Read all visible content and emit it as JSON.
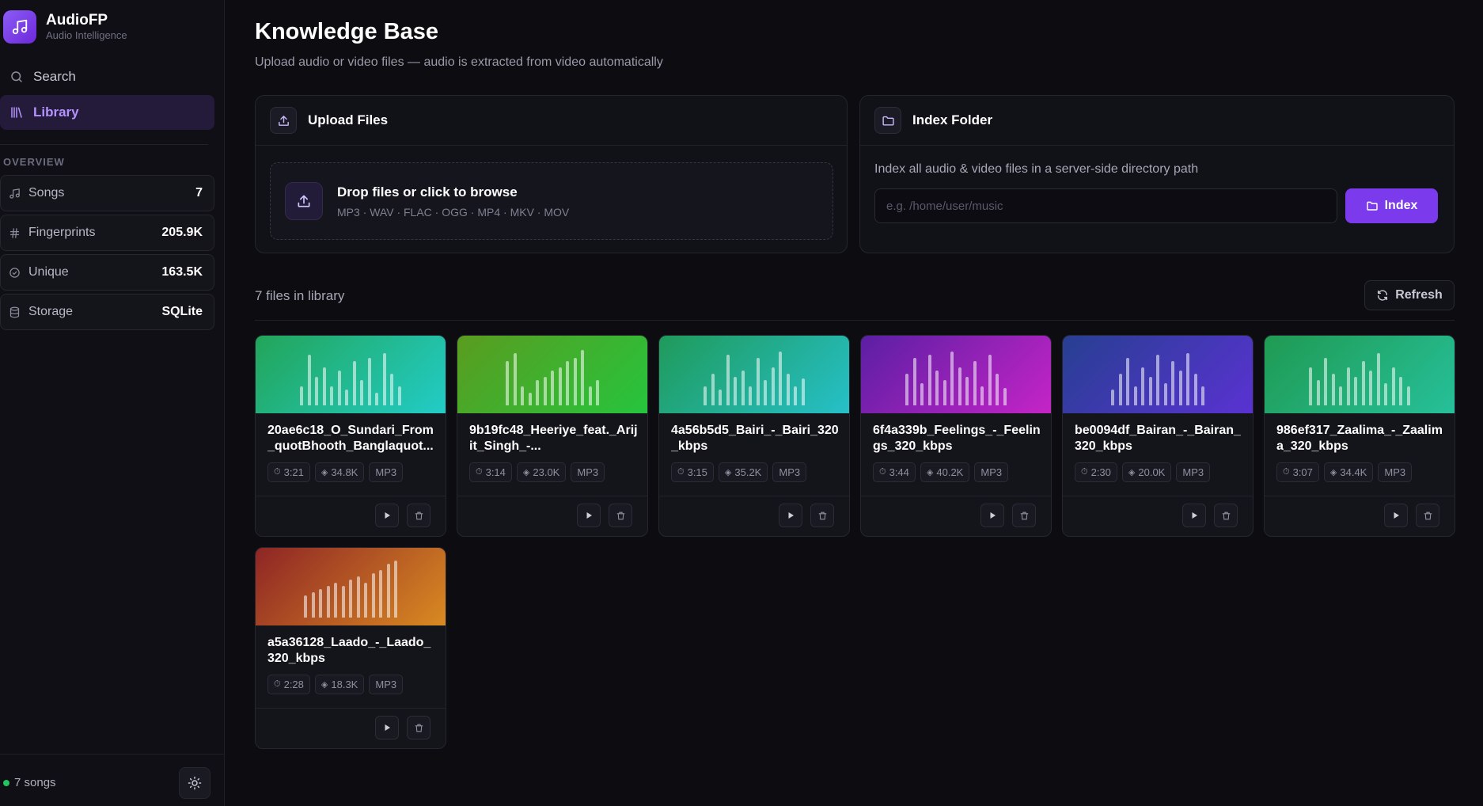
{
  "brand": {
    "name": "AudioFP",
    "subtitle": "Audio Intelligence"
  },
  "nav": [
    {
      "label": "Search",
      "icon": "search-icon",
      "active": false
    },
    {
      "label": "Library",
      "icon": "library-icon",
      "active": true
    }
  ],
  "overview": {
    "label": "OVERVIEW",
    "stats": [
      {
        "label": "Songs",
        "value": "7",
        "icon": "music-note-icon"
      },
      {
        "label": "Fingerprints",
        "value": "205.9K",
        "icon": "hash-icon"
      },
      {
        "label": "Unique",
        "value": "163.5K",
        "icon": "check-circle-icon"
      },
      {
        "label": "Storage",
        "value": "SQLite",
        "icon": "database-icon"
      }
    ]
  },
  "footer": {
    "status": "7 songs",
    "status_color": "#22c55e"
  },
  "page": {
    "title": "Knowledge Base",
    "subtitle": "Upload audio or video files — audio is extracted from video automatically"
  },
  "upload": {
    "title": "Upload Files",
    "drop_title": "Drop files or click to browse",
    "formats": "MP3 · WAV · FLAC · OGG · MP4 · MKV · MOV"
  },
  "index_folder": {
    "title": "Index Folder",
    "description": "Index all audio & video files in a server-side directory path",
    "placeholder": "e.g. /home/user/music",
    "value": "",
    "button": "Index"
  },
  "library": {
    "count_label": "7 files in library",
    "refresh_label": "Refresh",
    "accent": "#7c3aed",
    "songs": [
      {
        "title": "20ae6c18_O_Sundari_From_quotBhooth_Banglaquot...",
        "duration": "3:21",
        "fingerprints": "34.8K",
        "format": "MP3",
        "gradient": [
          "#22a559",
          "#22ccc7"
        ],
        "levels": [
          0.3,
          0.8,
          0.45,
          0.6,
          0.3,
          0.55,
          0.25,
          0.7,
          0.4,
          0.75,
          0.2,
          0.82,
          0.5,
          0.3
        ]
      },
      {
        "title": "9b19fc48_Heeriye_feat._Arijit_Singh_-...",
        "duration": "3:14",
        "fingerprints": "23.0K",
        "format": "MP3",
        "gradient": [
          "#5a9c1f",
          "#26c43d"
        ],
        "levels": [
          0.7,
          0.82,
          0.3,
          0.2,
          0.4,
          0.45,
          0.55,
          0.6,
          0.7,
          0.75,
          0.88,
          0.3,
          0.4
        ]
      },
      {
        "title": "4a56b5d5_Bairi_-_Bairi_320_kbps",
        "duration": "3:15",
        "fingerprints": "35.2K",
        "format": "MP3",
        "gradient": [
          "#1f9a5a",
          "#26c0c9"
        ],
        "levels": [
          0.3,
          0.5,
          0.25,
          0.8,
          0.45,
          0.55,
          0.3,
          0.75,
          0.4,
          0.6,
          0.85,
          0.5,
          0.3,
          0.42
        ]
      },
      {
        "title": "6f4a339b_Feelings_-_Feelings_320_kbps",
        "duration": "3:44",
        "fingerprints": "40.2K",
        "format": "MP3",
        "gradient": [
          "#5b1fa3",
          "#c524c7"
        ],
        "levels": [
          0.5,
          0.75,
          0.35,
          0.8,
          0.55,
          0.4,
          0.85,
          0.6,
          0.45,
          0.7,
          0.3,
          0.8,
          0.5,
          0.28
        ]
      },
      {
        "title": "be0094df_Bairan_-_Bairan_320_kbps",
        "duration": "2:30",
        "fingerprints": "20.0K",
        "format": "MP3",
        "gradient": [
          "#273f91",
          "#5a32d2"
        ],
        "levels": [
          0.25,
          0.5,
          0.75,
          0.3,
          0.6,
          0.45,
          0.8,
          0.35,
          0.7,
          0.55,
          0.82,
          0.5,
          0.3
        ]
      },
      {
        "title": "986ef317_Zaalima_-_Zaalima_320_kbps",
        "duration": "3:07",
        "fingerprints": "34.4K",
        "format": "MP3",
        "gradient": [
          "#1f9a52",
          "#26c09a"
        ],
        "levels": [
          0.6,
          0.4,
          0.75,
          0.5,
          0.3,
          0.6,
          0.45,
          0.7,
          0.55,
          0.82,
          0.35,
          0.6,
          0.45,
          0.3
        ]
      },
      {
        "title": "a5a36128_Laado_-_Laado_320_kbps",
        "duration": "2:28",
        "fingerprints": "18.3K",
        "format": "MP3",
        "gradient": [
          "#8e2525",
          "#d98a22"
        ],
        "levels": [
          0.35,
          0.4,
          0.45,
          0.5,
          0.55,
          0.5,
          0.6,
          0.65,
          0.55,
          0.7,
          0.75,
          0.85,
          0.9
        ]
      }
    ]
  }
}
